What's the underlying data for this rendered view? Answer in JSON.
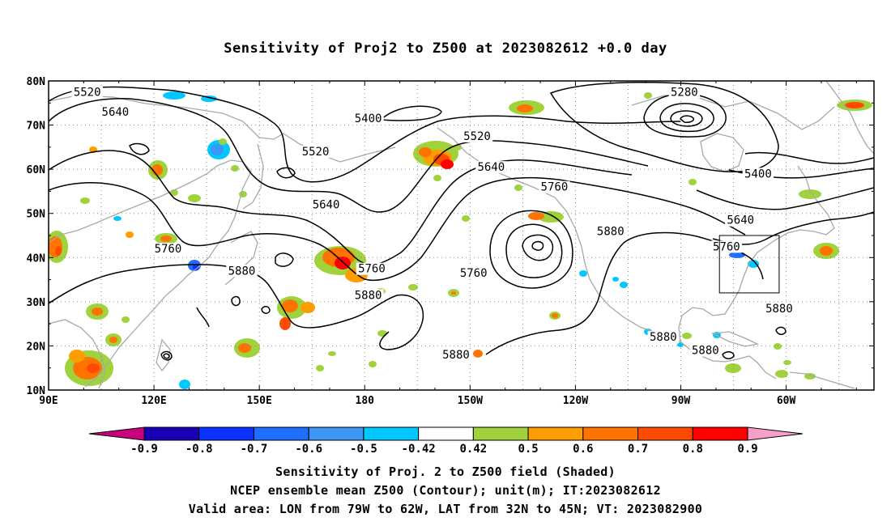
{
  "title": "Sensitivity of Proj2 to Z500 at 2023082612 +0.0 day",
  "lat_labels": [
    "80N",
    "70N",
    "60N",
    "50N",
    "40N",
    "30N",
    "20N",
    "10N"
  ],
  "lon_labels": [
    "90E",
    "120E",
    "150E",
    "180",
    "150W",
    "120W",
    "90W",
    "60W"
  ],
  "contour_labels": [
    {
      "text": "5520",
      "lon": 101,
      "lat": 77
    },
    {
      "text": "5640",
      "lon": 109,
      "lat": 72.5
    },
    {
      "text": "5400",
      "lon": 181,
      "lat": 71
    },
    {
      "text": "5520",
      "lon": 166,
      "lat": 63.5
    },
    {
      "text": "5520",
      "lon": 212,
      "lat": 67
    },
    {
      "text": "5640",
      "lon": 216,
      "lat": 60
    },
    {
      "text": "5760",
      "lon": 234,
      "lat": 55.5
    },
    {
      "text": "5280",
      "lon": 271,
      "lat": 77
    },
    {
      "text": "5400",
      "lon": 292,
      "lat": 58.5
    },
    {
      "text": "5640",
      "lon": 287,
      "lat": 48
    },
    {
      "text": "5640",
      "lon": 169,
      "lat": 51.5
    },
    {
      "text": "5760",
      "lon": 124,
      "lat": 41.5
    },
    {
      "text": "5880",
      "lon": 145,
      "lat": 36.5
    },
    {
      "text": "5760",
      "lon": 182,
      "lat": 37
    },
    {
      "text": "5880",
      "lon": 181,
      "lat": 31
    },
    {
      "text": "5760",
      "lon": 211,
      "lat": 36
    },
    {
      "text": "5880",
      "lon": 250,
      "lat": 45.5
    },
    {
      "text": "5760",
      "lon": 283,
      "lat": 42
    },
    {
      "text": "5880",
      "lon": 298,
      "lat": 28
    },
    {
      "text": "5880",
      "lon": 265,
      "lat": 21.5
    },
    {
      "text": "5880",
      "lon": 277,
      "lat": 18.5
    },
    {
      "text": "5880",
      "lon": 206,
      "lat": 17.5
    }
  ],
  "colorbar": {
    "labels": [
      "-0.9",
      "-0.8",
      "-0.7",
      "-0.6",
      "-0.5",
      "-0.42",
      "0.42",
      "0.5",
      "0.6",
      "0.7",
      "0.8",
      "0.9"
    ],
    "colors": [
      "#1a00b4",
      "#0a32ff",
      "#1e6eff",
      "#3c96f5",
      "#00c8ff",
      "#ffffff",
      "#a0d23c",
      "#ff9d00",
      "#ff7300",
      "#ff4b00",
      "#ff0000"
    ],
    "low_end_color": "#c8007d",
    "high_end_color": "#f5a0c8"
  },
  "map_extent": {
    "lon_min": 90,
    "lon_max": 325,
    "lat_min": 10,
    "lat_max": 80
  },
  "valid_box": {
    "lon_min": 281,
    "lon_max": 298,
    "lat_min": 32,
    "lat_max": 45
  },
  "footer": {
    "line1": "Sensitivity of Proj. 2 to Z500 field (Shaded)",
    "line2": "NCEP ensemble mean Z500 (Contour); unit(m); IT:2023082612",
    "line3": "Valid area: LON from 79W to 62W, LAT from 32N to 45N; VT: 2023082900"
  }
}
